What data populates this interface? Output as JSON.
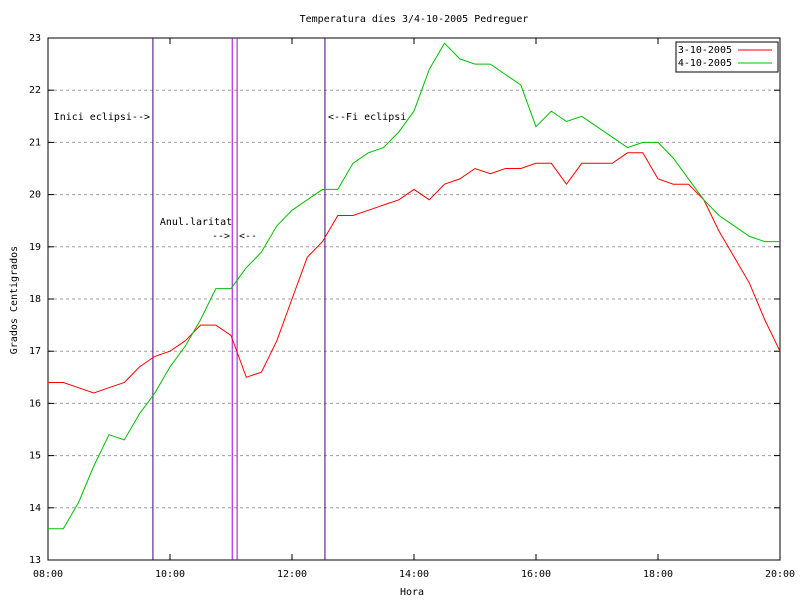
{
  "chart_data": {
    "type": "line",
    "title": "Temperatura dies 3/4-10-2005 Pedreguer",
    "xlabel": "Hora",
    "ylabel": "Grados Centigrados",
    "x": [
      8,
      8.25,
      8.5,
      8.75,
      9,
      9.25,
      9.5,
      9.75,
      10,
      10.25,
      10.5,
      10.75,
      11,
      11.25,
      11.5,
      11.75,
      12,
      12.25,
      12.5,
      12.75,
      13,
      13.25,
      13.5,
      13.75,
      14,
      14.25,
      14.5,
      14.75,
      15,
      15.25,
      15.5,
      15.75,
      16,
      16.25,
      16.5,
      16.75,
      17,
      17.25,
      17.5,
      17.75,
      18,
      18.25,
      18.5,
      18.75,
      19,
      19.25,
      19.5,
      19.75,
      20
    ],
    "series": [
      {
        "name": "3-10-2005",
        "color": "#ff0000",
        "values": [
          16.4,
          16.4,
          16.3,
          16.2,
          16.3,
          16.4,
          16.7,
          16.9,
          17.0,
          17.2,
          17.5,
          17.5,
          17.3,
          16.5,
          16.6,
          17.2,
          18.0,
          18.8,
          19.1,
          19.6,
          19.6,
          19.7,
          19.8,
          19.9,
          20.1,
          19.9,
          20.2,
          20.3,
          20.5,
          20.4,
          20.5,
          20.5,
          20.6,
          20.6,
          20.2,
          20.6,
          20.6,
          20.6,
          20.8,
          20.8,
          20.3,
          20.2,
          20.2,
          19.9,
          19.3,
          18.8,
          18.3,
          17.6,
          17.0
        ]
      },
      {
        "name": "4-10-2005",
        "color": "#00c000",
        "values": [
          13.6,
          13.6,
          14.1,
          14.8,
          15.4,
          15.3,
          15.8,
          16.2,
          16.7,
          17.1,
          17.6,
          18.2,
          18.2,
          18.6,
          18.9,
          19.4,
          19.7,
          19.9,
          20.1,
          20.1,
          20.6,
          20.8,
          20.9,
          21.2,
          21.6,
          22.4,
          22.9,
          22.6,
          22.5,
          22.5,
          22.3,
          22.1,
          21.3,
          21.6,
          21.4,
          21.5,
          21.3,
          21.1,
          20.9,
          21.0,
          21.0,
          20.7,
          20.3,
          19.9,
          19.6,
          19.4,
          19.2,
          19.1,
          19.1
        ]
      }
    ],
    "vlines": [
      {
        "x": 9.72,
        "color": "#400080"
      },
      {
        "x": 11.02,
        "color": "#a000e0"
      },
      {
        "x": 11.1,
        "color": "#a000e0"
      },
      {
        "x": 12.54,
        "color": "#400080"
      }
    ],
    "annotations": [
      "Inici eclipsi-->",
      "<--Fi eclipsi",
      "Anul.laritat",
      "-->",
      "<--"
    ],
    "xlim": [
      8,
      20
    ],
    "xticks": [
      {
        "value": 8,
        "label": "08:00"
      },
      {
        "value": 10,
        "label": "10:00"
      },
      {
        "value": 12,
        "label": "12:00"
      },
      {
        "value": 14,
        "label": "14:00"
      },
      {
        "value": 16,
        "label": "16:00"
      },
      {
        "value": 18,
        "label": "18:00"
      },
      {
        "value": 20,
        "label": "20:00"
      }
    ],
    "ylim": [
      13,
      23
    ],
    "yticks": [
      13,
      14,
      15,
      16,
      17,
      18,
      19,
      20,
      21,
      22,
      23
    ],
    "grid": true,
    "legend": "top-right"
  }
}
